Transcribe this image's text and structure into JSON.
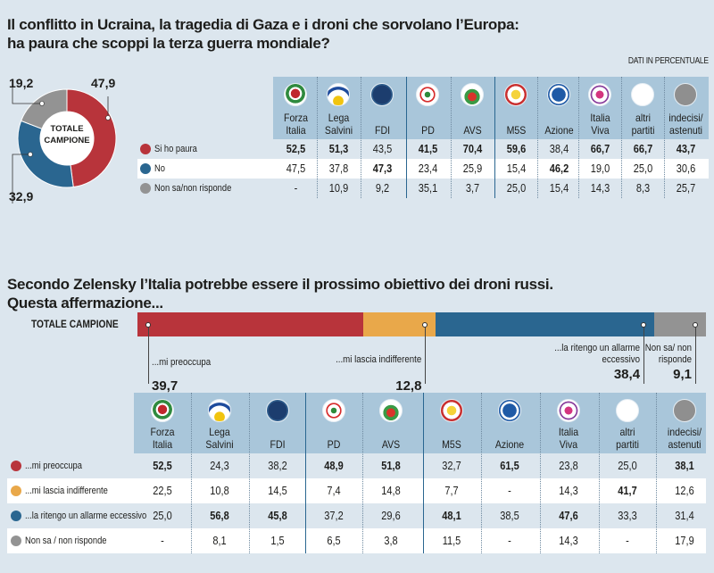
{
  "section1": {
    "title_line1": "Il conflitto in Ucraina, la tragedia di Gaza e i droni che sorvolano l’Europa:",
    "title_line2": "ha paura che scoppi la terza guerra mondiale?",
    "unit_note": "DATI IN PERCENTUALE",
    "donut_center_line1": "TOTALE",
    "donut_center_line2": "CAMPIONE"
  },
  "section2": {
    "title_line1": "Secondo Zelensky l’Italia potrebbe essere il prossimo obiettivo dei droni russi.",
    "title_line2": "Questa affermazione...",
    "bar_label": "TOTALE CAMPIONE"
  },
  "colors": {
    "red": "#b8343b",
    "blue": "#2a6690",
    "gray": "#939393",
    "orange": "#e9a84a",
    "header_bg": "#a9c6da",
    "page_bg": "#dce6ee"
  },
  "chart_data": [
    {
      "type": "pie",
      "title": "Totale campione",
      "categories": [
        "Si ho paura",
        "No",
        "Non sa/non risponde"
      ],
      "values": [
        47.9,
        32.9,
        19.2
      ],
      "labels": [
        "47,9",
        "32,9",
        "19,2"
      ],
      "colors": [
        "#b8343b",
        "#2a6690",
        "#939393"
      ]
    },
    {
      "type": "table",
      "title": "Ha paura che scoppi la terza guerra mondiale? (per partito)",
      "columns": [
        "Forza Italia",
        "Lega Salvini",
        "FDI",
        "PD",
        "AVS",
        "M5S",
        "Azione",
        "Italia Viva",
        "altri partiti",
        "indecisi/astenuti"
      ],
      "rows": [
        {
          "label": "Si ho paura",
          "color": "#b8343b",
          "values": [
            "52,5",
            "51,3",
            "43,5",
            "41,5",
            "70,4",
            "59,6",
            "38,4",
            "66,7",
            "66,7",
            "43,7"
          ],
          "bold": [
            true,
            true,
            false,
            true,
            true,
            true,
            false,
            true,
            true,
            true
          ]
        },
        {
          "label": "No",
          "color": "#2a6690",
          "values": [
            "47,5",
            "37,8",
            "47,3",
            "23,4",
            "25,9",
            "15,4",
            "46,2",
            "19,0",
            "25,0",
            "30,6"
          ],
          "bold": [
            false,
            false,
            true,
            false,
            false,
            false,
            true,
            false,
            false,
            false
          ]
        },
        {
          "label": "Non sa/non risponde",
          "color": "#939393",
          "values": [
            "-",
            "10,9",
            "9,2",
            "35,1",
            "3,7",
            "25,0",
            "15,4",
            "14,3",
            "8,3",
            "25,7"
          ],
          "bold": [
            false,
            false,
            false,
            false,
            false,
            false,
            false,
            false,
            false,
            false
          ]
        }
      ]
    },
    {
      "type": "bar",
      "title": "Totale campione",
      "categories": [
        "...mi preoccupa",
        "...mi lascia indifferente",
        "...la ritengo un allarme eccessivo",
        "Non sa/ non risponde"
      ],
      "values": [
        39.7,
        12.8,
        38.4,
        9.1
      ],
      "labels": [
        "39,7",
        "12,8",
        "38,4",
        "9,1"
      ],
      "colors": [
        "#b8343b",
        "#e9a84a",
        "#2a6690",
        "#939393"
      ]
    },
    {
      "type": "table",
      "title": "Questa affermazione... (per partito)",
      "columns": [
        "Forza Italia",
        "Lega Salvini",
        "FDI",
        "PD",
        "AVS",
        "M5S",
        "Azione",
        "Italia Viva",
        "altri partiti",
        "indecisi/astenuti"
      ],
      "rows": [
        {
          "label": "...mi preoccupa",
          "color": "#b8343b",
          "values": [
            "52,5",
            "24,3",
            "38,2",
            "48,9",
            "51,8",
            "32,7",
            "61,5",
            "23,8",
            "25,0",
            "38,1"
          ],
          "bold": [
            true,
            false,
            false,
            true,
            true,
            false,
            true,
            false,
            false,
            true
          ]
        },
        {
          "label": "...mi lascia indifferente",
          "color": "#e9a84a",
          "values": [
            "22,5",
            "10,8",
            "14,5",
            "7,4",
            "14,8",
            "7,7",
            "-",
            "14,3",
            "41,7",
            "12,6"
          ],
          "bold": [
            false,
            false,
            false,
            false,
            false,
            false,
            false,
            false,
            true,
            false
          ]
        },
        {
          "label": "...la ritengo un allarme eccessivo",
          "color": "#2a6690",
          "values": [
            "25,0",
            "56,8",
            "45,8",
            "37,2",
            "29,6",
            "48,1",
            "38,5",
            "47,6",
            "33,3",
            "31,4"
          ],
          "bold": [
            false,
            true,
            true,
            false,
            false,
            true,
            false,
            true,
            false,
            false
          ]
        },
        {
          "label": "Non sa / non risponde",
          "color": "#939393",
          "values": [
            "-",
            "8,1",
            "1,5",
            "6,5",
            "3,8",
            "11,5",
            "-",
            "14,3",
            "-",
            "17,9"
          ],
          "bold": [
            false,
            false,
            false,
            false,
            false,
            false,
            false,
            false,
            false,
            false
          ]
        }
      ]
    }
  ],
  "parties": [
    {
      "line1": "Forza",
      "line2": "Italia",
      "logo": "forza-italia-logo"
    },
    {
      "line1": "Lega",
      "line2": "Salvini",
      "logo": "lega-logo"
    },
    {
      "line1": "",
      "line2": "FDI",
      "logo": "fdi-logo"
    },
    {
      "line1": "",
      "line2": "PD",
      "logo": "pd-logo"
    },
    {
      "line1": "",
      "line2": "AVS",
      "logo": "avs-logo"
    },
    {
      "line1": "",
      "line2": "M5S",
      "logo": "m5s-logo"
    },
    {
      "line1": "",
      "line2": "Azione",
      "logo": "azione-logo"
    },
    {
      "line1": "Italia",
      "line2": "Viva",
      "logo": "italia-viva-logo"
    },
    {
      "line1": "altri",
      "line2": "partiti",
      "logo": "altri-circle"
    },
    {
      "line1": "indecisi/",
      "line2": "astenuti",
      "logo": "indecisi-circle"
    }
  ]
}
